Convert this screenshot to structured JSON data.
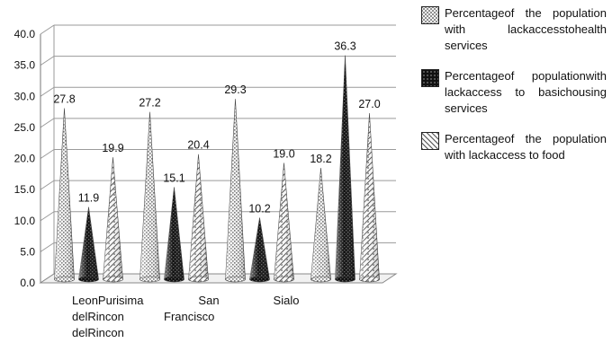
{
  "chart_data": {
    "type": "bar",
    "style": "3d-cone",
    "title": "",
    "xlabel": "",
    "ylabel": "",
    "ylim": [
      0,
      40
    ],
    "yticks": [
      "0.0",
      "5.0",
      "10.0",
      "15.0",
      "20.0",
      "25.0",
      "30.0",
      "35.0",
      "40.0"
    ],
    "grid": true,
    "legend_position": "right",
    "categories": [
      {
        "lines": [
          "LeonPurisima",
          "delRincon",
          "delRincon"
        ]
      },
      {
        "lines": [
          "San",
          "Francisco"
        ]
      },
      {
        "lines": [
          "Sialo"
        ]
      },
      {
        "lines": [
          ""
        ]
      }
    ],
    "series": [
      {
        "name": "Percentageof the population with lackaccesstohealth services",
        "pattern": "dots",
        "color": "#bdbdbd",
        "values": [
          27.8,
          27.2,
          29.3,
          18.2
        ],
        "labels": [
          "27.8",
          "27.2",
          "29.3",
          "18.2"
        ]
      },
      {
        "name": "Percentageof populationwith lackaccess to basichousing services",
        "pattern": "dark",
        "color": "#1a1a1a",
        "values": [
          11.9,
          15.1,
          10.2,
          36.3
        ],
        "labels": [
          "11.9",
          "15.1",
          "10.2",
          "36.3"
        ]
      },
      {
        "name": "Percentageof the population with lackaccess to food",
        "pattern": "checker",
        "color": "#cfcfcf",
        "values": [
          19.9,
          20.4,
          19.0,
          27.0
        ],
        "labels": [
          "19.9",
          "20.4",
          "19.0",
          "27.0"
        ]
      }
    ]
  }
}
